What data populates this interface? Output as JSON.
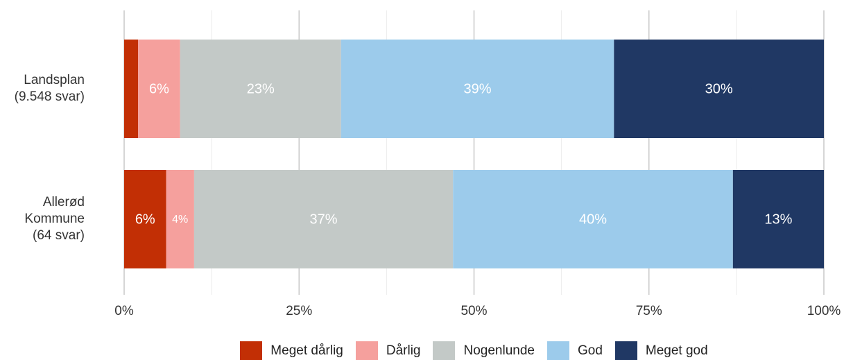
{
  "chart_data": {
    "type": "stacked_barh",
    "categories": [
      "Landsplan\n(9.548 svar)",
      "Allerød\nKommune\n(64 svar)"
    ],
    "series": [
      {
        "name": "Meget dårlig",
        "color": "#c22f05",
        "values": [
          2,
          6
        ],
        "value_labels": [
          null,
          "6%"
        ]
      },
      {
        "name": "Dårlig",
        "color": "#f5a09d",
        "values": [
          6,
          4
        ],
        "value_labels": [
          "6%",
          "4%"
        ]
      },
      {
        "name": "Nogenlunde",
        "color": "#c3c9c7",
        "values": [
          23,
          37
        ],
        "value_labels": [
          "23%",
          "37%"
        ]
      },
      {
        "name": "God",
        "color": "#9ccbeb",
        "values": [
          39,
          40
        ],
        "value_labels": [
          "39%",
          "40%"
        ]
      },
      {
        "name": "Meget god",
        "color": "#203864",
        "values": [
          30,
          13
        ],
        "value_labels": [
          "30%",
          "13%"
        ]
      }
    ],
    "xlim": [
      0,
      100
    ],
    "xticks": [
      {
        "value": 0,
        "label": "0%"
      },
      {
        "value": 25,
        "label": "25%"
      },
      {
        "value": 50,
        "label": "50%"
      },
      {
        "value": 75,
        "label": "75%"
      },
      {
        "value": 100,
        "label": "100%"
      }
    ],
    "minor_xticks": [
      12.5,
      37.5,
      62.5,
      87.5
    ],
    "grid": true,
    "legend": "bottom"
  }
}
